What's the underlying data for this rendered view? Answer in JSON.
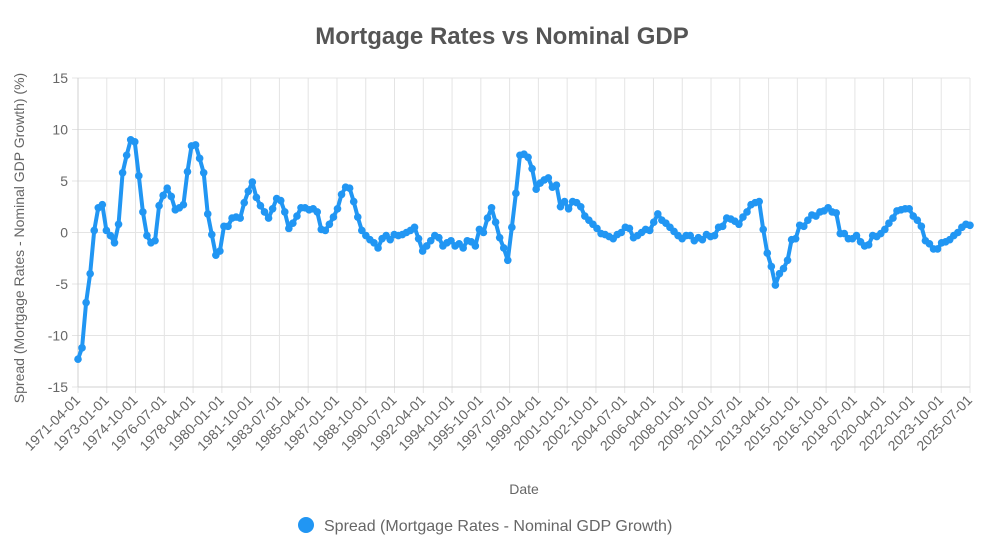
{
  "chart_data": {
    "type": "line",
    "title": "Mortgage Rates vs Nominal GDP",
    "xlabel": "Date",
    "ylabel": "Spread (Mortgage Rates - Nominal GDP Growth) (%)",
    "ylim": [
      -15,
      15
    ],
    "yticks": [
      15,
      10,
      5,
      0,
      -5,
      -10,
      -15
    ],
    "xtick_labels": [
      "1971-04-01",
      "1973-01-01",
      "1974-10-01",
      "1976-07-01",
      "1978-04-01",
      "1980-01-01",
      "1981-10-01",
      "1983-07-01",
      "1985-04-01",
      "1987-01-01",
      "1988-10-01",
      "1990-07-01",
      "1992-04-01",
      "1994-01-01",
      "1995-10-01",
      "1997-07-01",
      "1999-04-01",
      "2001-01-01",
      "2002-10-01",
      "2004-07-01",
      "2006-04-01",
      "2008-01-01",
      "2009-10-01",
      "2011-07-01",
      "2013-04-01",
      "2015-01-01",
      "2016-10-01",
      "2018-07-01",
      "2020-04-01",
      "2022-01-01",
      "2023-10-01",
      "2025-07-01"
    ],
    "x_start": "1971-04-01",
    "x_end": "2025-07-01",
    "frequency": "quarterly",
    "grid": true,
    "legend_position": "bottom",
    "series": [
      {
        "name": "Spread (Mortgage Rates - Nominal GDP Growth)",
        "color": "#2196f3",
        "values": [
          -12.3,
          -11.2,
          -6.8,
          -4.0,
          0.2,
          2.4,
          2.7,
          0.2,
          -0.3,
          -1.0,
          0.8,
          5.8,
          7.5,
          9.0,
          8.8,
          5.5,
          2.0,
          -0.3,
          -1.0,
          -0.8,
          2.6,
          3.6,
          4.3,
          3.5,
          2.2,
          2.4,
          2.7,
          5.9,
          8.4,
          8.5,
          7.2,
          5.8,
          1.8,
          -0.2,
          -2.2,
          -1.8,
          0.6,
          0.6,
          1.4,
          1.5,
          1.4,
          2.9,
          4.0,
          4.9,
          3.4,
          2.6,
          2.0,
          1.4,
          2.3,
          3.3,
          3.1,
          2.0,
          0.4,
          0.9,
          1.6,
          2.4,
          2.4,
          2.2,
          2.3,
          2.0,
          0.3,
          0.2,
          0.8,
          1.5,
          2.3,
          3.7,
          4.4,
          4.3,
          3.0,
          1.5,
          0.2,
          -0.3,
          -0.7,
          -1.0,
          -1.5,
          -0.6,
          -0.3,
          -0.7,
          -0.2,
          -0.3,
          -0.2,
          0.0,
          0.2,
          0.5,
          -0.6,
          -1.8,
          -1.3,
          -0.8,
          -0.3,
          -0.5,
          -1.3,
          -1.0,
          -0.8,
          -1.3,
          -1.1,
          -1.5,
          -0.8,
          -0.9,
          -1.3,
          0.3,
          0.0,
          1.4,
          2.4,
          1.0,
          -0.5,
          -1.5,
          -2.7,
          0.5,
          3.8,
          7.5,
          7.6,
          7.3,
          6.2,
          4.2,
          4.8,
          5.1,
          5.3,
          4.4,
          4.6,
          2.5,
          3.0,
          2.3,
          3.0,
          2.9,
          2.5,
          1.6,
          1.2,
          0.8,
          0.4,
          -0.1,
          -0.2,
          -0.4,
          -0.6,
          -0.2,
          0.0,
          0.5,
          0.4,
          -0.5,
          -0.3,
          0.0,
          0.3,
          0.2,
          1.0,
          1.8,
          1.2,
          0.9,
          0.5,
          0.1,
          -0.3,
          -0.6,
          -0.3,
          -0.3,
          -0.8,
          -0.5,
          -0.7,
          -0.2,
          -0.4,
          -0.3,
          0.5,
          0.6,
          1.4,
          1.3,
          1.1,
          0.8,
          1.5,
          2.0,
          2.7,
          2.9,
          3.0,
          0.3,
          -2.0,
          -3.3,
          -5.1,
          -4.0,
          -3.5,
          -2.7,
          -0.7,
          -0.6,
          0.7,
          0.6,
          1.2,
          1.7,
          1.6,
          2.0,
          2.1,
          2.4,
          2.0,
          1.9,
          -0.1,
          -0.1,
          -0.6,
          -0.6,
          -0.3,
          -0.9,
          -1.3,
          -1.2,
          -0.3,
          -0.4,
          -0.1,
          0.3,
          0.9,
          1.4,
          2.1,
          2.2,
          2.3,
          2.3,
          1.6,
          1.2,
          0.6,
          -0.8,
          -1.1,
          -1.6,
          -1.6,
          -1.0,
          -0.9,
          -0.7,
          -0.3,
          0.0,
          0.5,
          0.8,
          0.7
        ]
      }
    ]
  }
}
